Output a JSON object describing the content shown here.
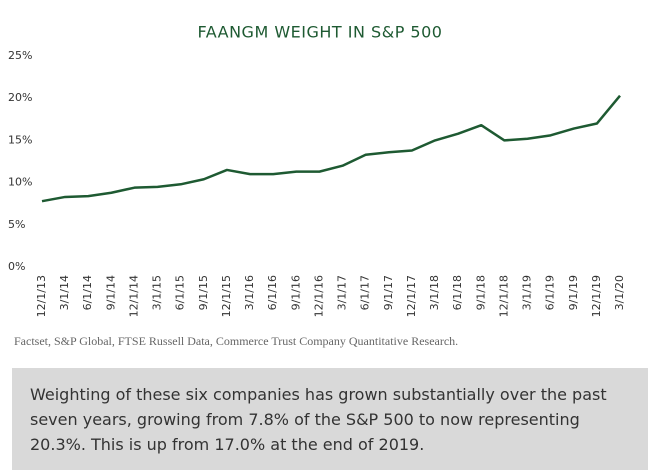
{
  "chart_data": {
    "type": "line",
    "title": "FAANGM WEIGHT IN S&P 500",
    "categories": [
      "12/1/13",
      "3/1/14",
      "6/1/14",
      "9/1/14",
      "12/1/14",
      "3/1/15",
      "6/1/15",
      "9/1/15",
      "12/1/15",
      "3/1/16",
      "6/1/16",
      "9/1/16",
      "12/1/16",
      "3/1/17",
      "6/1/17",
      "9/1/17",
      "12/1/17",
      "3/1/18",
      "6/1/18",
      "9/1/18",
      "12/1/18",
      "3/1/19",
      "6/1/19",
      "9/1/19",
      "12/1/19",
      "3/1/20"
    ],
    "series": [
      {
        "name": "FAANGM weight",
        "color": "#1e5a32",
        "values": [
          7.8,
          8.3,
          8.4,
          8.8,
          9.4,
          9.5,
          9.8,
          10.4,
          11.5,
          11.0,
          11.0,
          11.3,
          11.3,
          12.0,
          13.3,
          13.6,
          13.8,
          15.0,
          15.8,
          16.8,
          15.0,
          15.2,
          15.6,
          16.4,
          17.0,
          20.3
        ]
      }
    ],
    "ylim": [
      0,
      25
    ],
    "yticks": [
      {
        "value": 0,
        "label": "0%"
      },
      {
        "value": 5,
        "label": "5%"
      },
      {
        "value": 10,
        "label": "10%"
      },
      {
        "value": 15,
        "label": "15%"
      },
      {
        "value": 20,
        "label": "20%"
      },
      {
        "value": 25,
        "label": "25%"
      }
    ],
    "grid": false
  },
  "source": "Factset, S&P Global, FTSE Russell Data, Commerce Trust Company Quantitative Research.",
  "caption": [
    "Weighting of these six companies has grown substantially over the past",
    "seven years, growing from 7.8% of the S&P 500 to now representing",
    "20.3%. This is up from 17.0% at the end of 2019."
  ]
}
